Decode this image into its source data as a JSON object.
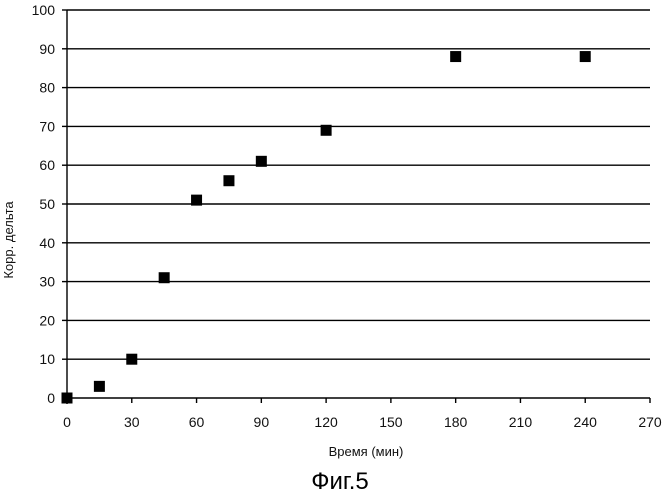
{
  "figure": {
    "caption": "Фиг.5"
  },
  "chart_data": {
    "type": "scatter",
    "xlabel": "Время (мин)",
    "ylabel": "Корр. дельта",
    "xlim": [
      0,
      270
    ],
    "ylim": [
      0,
      100
    ],
    "x_ticks": [
      0,
      30,
      60,
      90,
      120,
      150,
      180,
      210,
      240,
      270
    ],
    "y_ticks": [
      0,
      10,
      20,
      30,
      40,
      50,
      60,
      70,
      80,
      90,
      100
    ],
    "grid": "horizontal",
    "legend": "none",
    "marker": "square",
    "color": "#000000",
    "series": [
      {
        "x": [
          0,
          15,
          30,
          45,
          60,
          75,
          90,
          120,
          180,
          240
        ],
        "y": [
          0,
          3,
          10,
          31,
          51,
          56,
          61,
          69,
          88,
          88
        ]
      }
    ]
  }
}
